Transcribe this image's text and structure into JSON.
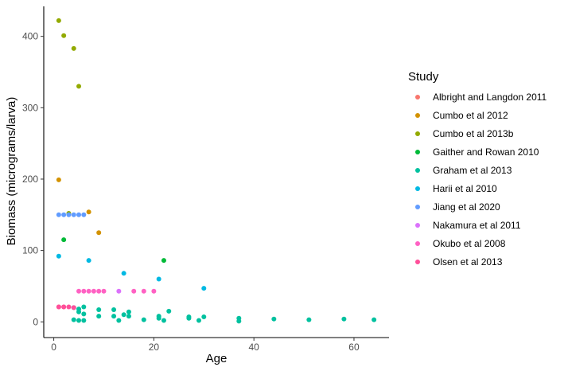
{
  "chart_data": {
    "type": "scatter",
    "xlabel": "Age",
    "ylabel": "Biomass (micrograms/larva)",
    "xlim": [
      -2,
      67
    ],
    "ylim": [
      -22,
      442
    ],
    "xticks": [
      0,
      20,
      40,
      60
    ],
    "yticks": [
      0,
      100,
      200,
      300,
      400
    ],
    "grid": false,
    "legend": {
      "title": "Study",
      "placement": "right"
    },
    "series": [
      {
        "name": "Albright and Langdon 2011",
        "color": "#F8766D",
        "points": [
          [
            1,
            21
          ],
          [
            2,
            21
          ]
        ]
      },
      {
        "name": "Cumbo et al 2012",
        "color": "#D39200",
        "points": [
          [
            1,
            199
          ],
          [
            7,
            154
          ],
          [
            9,
            125
          ]
        ]
      },
      {
        "name": "Cumbo et al 2013b",
        "color": "#93AA00",
        "points": [
          [
            1,
            422
          ],
          [
            2,
            401
          ],
          [
            4,
            383
          ],
          [
            5,
            330
          ],
          [
            3,
            152
          ]
        ]
      },
      {
        "name": "Gaither and Rowan 2010",
        "color": "#00BA38",
        "points": [
          [
            2,
            115
          ],
          [
            22,
            86
          ]
        ]
      },
      {
        "name": "Graham et al 2013",
        "color": "#00C19F",
        "points": [
          [
            4,
            20
          ],
          [
            5,
            18
          ],
          [
            6,
            21
          ],
          [
            5,
            14
          ],
          [
            6,
            11
          ],
          [
            4,
            3
          ],
          [
            5,
            2
          ],
          [
            6,
            2
          ],
          [
            9,
            17
          ],
          [
            9,
            8
          ],
          [
            12,
            17
          ],
          [
            12,
            8
          ],
          [
            13,
            2
          ],
          [
            14,
            10
          ],
          [
            15,
            14
          ],
          [
            15,
            8
          ],
          [
            18,
            3
          ],
          [
            21,
            8
          ],
          [
            21,
            5
          ],
          [
            22,
            2
          ],
          [
            23,
            15
          ],
          [
            27,
            7
          ],
          [
            27,
            5
          ],
          [
            29,
            2
          ],
          [
            30,
            7
          ],
          [
            37,
            5
          ],
          [
            37,
            1
          ],
          [
            44,
            4
          ],
          [
            51,
            3
          ],
          [
            58,
            4
          ],
          [
            64,
            3
          ]
        ]
      },
      {
        "name": "Harii et al 2010",
        "color": "#00B9E3",
        "points": [
          [
            1,
            92
          ],
          [
            7,
            86
          ],
          [
            14,
            68
          ],
          [
            21,
            60
          ],
          [
            30,
            47
          ]
        ]
      },
      {
        "name": "Jiang et al 2020",
        "color": "#619CFF",
        "points": [
          [
            1,
            150
          ],
          [
            2,
            150
          ],
          [
            3,
            150
          ],
          [
            4,
            150
          ],
          [
            5,
            150
          ],
          [
            6,
            150
          ]
        ]
      },
      {
        "name": "Nakamura et al 2011",
        "color": "#DB72FB",
        "points": [
          [
            13,
            43
          ]
        ]
      },
      {
        "name": "Okubo et al 2008",
        "color": "#FF61C3",
        "points": [
          [
            5,
            43
          ],
          [
            6,
            43
          ],
          [
            7,
            43
          ],
          [
            8,
            43
          ],
          [
            9,
            43
          ],
          [
            10,
            43
          ],
          [
            16,
            43
          ],
          [
            18,
            43
          ],
          [
            20,
            43
          ]
        ]
      },
      {
        "name": "Olsen et al 2013",
        "color": "#FF4F9A",
        "points": [
          [
            1,
            21
          ],
          [
            2,
            21
          ],
          [
            3,
            21
          ],
          [
            4,
            20
          ]
        ]
      }
    ]
  }
}
